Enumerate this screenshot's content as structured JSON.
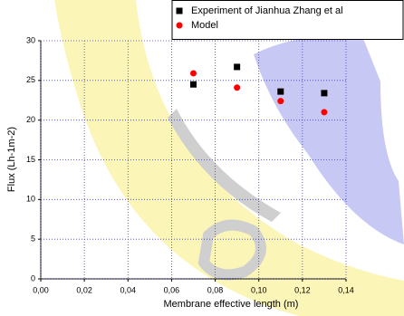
{
  "chart_data": {
    "type": "scatter",
    "x_label": "Membrane effective length (m)",
    "y_label": "Flux (Lh-1m-2)",
    "x": [
      0.07,
      0.09,
      0.11,
      0.13
    ],
    "series": [
      {
        "name": "Experiment of Jianhua Zhang et al",
        "color": "#000000",
        "marker": "square",
        "values": [
          24.5,
          26.7,
          23.6,
          23.4
        ]
      },
      {
        "name": "Model",
        "color": "#ff0000",
        "marker": "circle",
        "values": [
          25.9,
          24.1,
          22.4,
          21.0
        ]
      }
    ],
    "xlim": [
      0,
      0.14
    ],
    "xticks": [
      {
        "value": 0,
        "label": "0,00"
      },
      {
        "value": 0.02,
        "label": "0,02"
      },
      {
        "value": 0.04,
        "label": "0,04"
      },
      {
        "value": 0.06,
        "label": "0,06"
      },
      {
        "value": 0.08,
        "label": "0,08"
      },
      {
        "value": 0.1,
        "label": "0,10"
      },
      {
        "value": 0.12,
        "label": "0,12"
      },
      {
        "value": 0.14,
        "label": "0,14"
      }
    ],
    "ylim": [
      0,
      30
    ],
    "yticks": [
      0,
      5,
      10,
      15,
      20,
      25,
      30
    ],
    "grid": true,
    "legend": "top-right"
  }
}
